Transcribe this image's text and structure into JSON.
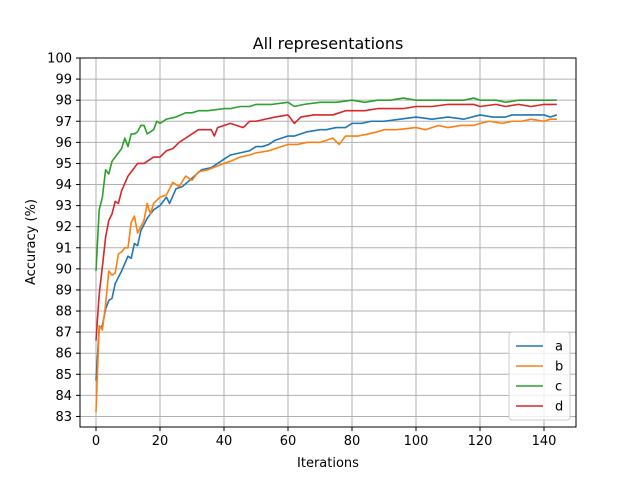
{
  "chart_data": {
    "type": "line",
    "title": "All representations",
    "xlabel": "Iterations",
    "ylabel": "Accuracy (%)",
    "xlim": [
      -5,
      150
    ],
    "ylim": [
      82.5,
      100
    ],
    "xticks": [
      0,
      20,
      40,
      60,
      80,
      100,
      120,
      140
    ],
    "yticks": [
      83,
      84,
      85,
      86,
      87,
      88,
      89,
      90,
      91,
      92,
      93,
      94,
      95,
      96,
      97,
      98,
      99,
      100
    ],
    "grid": true,
    "legend_position": "lower-right",
    "series": [
      {
        "name": "a",
        "color": "#1f77b4",
        "points": [
          [
            0,
            84.7
          ],
          [
            1,
            87.2
          ],
          [
            2,
            87.3
          ],
          [
            3,
            88.1
          ],
          [
            4,
            88.5
          ],
          [
            5,
            88.6
          ],
          [
            6,
            89.3
          ],
          [
            8,
            89.9
          ],
          [
            10,
            90.6
          ],
          [
            11,
            90.5
          ],
          [
            12,
            91.2
          ],
          [
            13,
            91.1
          ],
          [
            14,
            91.8
          ],
          [
            16,
            92.4
          ],
          [
            18,
            92.8
          ],
          [
            20,
            93.0
          ],
          [
            22,
            93.4
          ],
          [
            23,
            93.1
          ],
          [
            25,
            93.8
          ],
          [
            27,
            93.9
          ],
          [
            30,
            94.3
          ],
          [
            33,
            94.7
          ],
          [
            36,
            94.8
          ],
          [
            40,
            95.2
          ],
          [
            42,
            95.4
          ],
          [
            45,
            95.5
          ],
          [
            48,
            95.6
          ],
          [
            50,
            95.8
          ],
          [
            52,
            95.8
          ],
          [
            54,
            95.9
          ],
          [
            56,
            96.1
          ],
          [
            60,
            96.3
          ],
          [
            62,
            96.3
          ],
          [
            64,
            96.4
          ],
          [
            66,
            96.5
          ],
          [
            70,
            96.6
          ],
          [
            72,
            96.6
          ],
          [
            75,
            96.7
          ],
          [
            78,
            96.7
          ],
          [
            80,
            96.9
          ],
          [
            83,
            96.9
          ],
          [
            86,
            97.0
          ],
          [
            90,
            97.0
          ],
          [
            95,
            97.1
          ],
          [
            100,
            97.2
          ],
          [
            105,
            97.1
          ],
          [
            110,
            97.2
          ],
          [
            115,
            97.1
          ],
          [
            120,
            97.3
          ],
          [
            124,
            97.2
          ],
          [
            128,
            97.2
          ],
          [
            130,
            97.3
          ],
          [
            133,
            97.3
          ],
          [
            137,
            97.3
          ],
          [
            140,
            97.3
          ],
          [
            142,
            97.2
          ],
          [
            144,
            97.3
          ]
        ]
      },
      {
        "name": "b",
        "color": "#ff7f0e",
        "points": [
          [
            0,
            83.2
          ],
          [
            1,
            87.3
          ],
          [
            2,
            87.1
          ],
          [
            3,
            88.3
          ],
          [
            4,
            89.9
          ],
          [
            5,
            89.7
          ],
          [
            6,
            89.8
          ],
          [
            7,
            90.7
          ],
          [
            8,
            90.8
          ],
          [
            9,
            91.0
          ],
          [
            10,
            91.0
          ],
          [
            11,
            92.2
          ],
          [
            12,
            92.5
          ],
          [
            13,
            91.7
          ],
          [
            15,
            92.3
          ],
          [
            16,
            93.1
          ],
          [
            17,
            92.6
          ],
          [
            18,
            93.1
          ],
          [
            20,
            93.4
          ],
          [
            22,
            93.5
          ],
          [
            24,
            94.1
          ],
          [
            26,
            93.9
          ],
          [
            28,
            94.4
          ],
          [
            30,
            94.2
          ],
          [
            32,
            94.6
          ],
          [
            35,
            94.7
          ],
          [
            40,
            95.0
          ],
          [
            42,
            95.1
          ],
          [
            45,
            95.3
          ],
          [
            48,
            95.4
          ],
          [
            50,
            95.5
          ],
          [
            54,
            95.6
          ],
          [
            56,
            95.7
          ],
          [
            60,
            95.9
          ],
          [
            63,
            95.9
          ],
          [
            66,
            96.0
          ],
          [
            70,
            96.0
          ],
          [
            74,
            96.2
          ],
          [
            76,
            95.9
          ],
          [
            78,
            96.3
          ],
          [
            82,
            96.3
          ],
          [
            85,
            96.4
          ],
          [
            88,
            96.5
          ],
          [
            90,
            96.6
          ],
          [
            94,
            96.6
          ],
          [
            100,
            96.7
          ],
          [
            103,
            96.6
          ],
          [
            107,
            96.8
          ],
          [
            110,
            96.7
          ],
          [
            114,
            96.8
          ],
          [
            118,
            96.8
          ],
          [
            120,
            96.9
          ],
          [
            123,
            97.0
          ],
          [
            127,
            96.9
          ],
          [
            130,
            97.0
          ],
          [
            133,
            97.0
          ],
          [
            136,
            97.1
          ],
          [
            140,
            97.0
          ],
          [
            142,
            97.1
          ],
          [
            144,
            97.1
          ]
        ]
      },
      {
        "name": "c",
        "color": "#2ca02c",
        "points": [
          [
            0,
            89.9
          ],
          [
            1,
            92.8
          ],
          [
            2,
            93.4
          ],
          [
            3,
            94.7
          ],
          [
            4,
            94.5
          ],
          [
            5,
            95.1
          ],
          [
            6,
            95.3
          ],
          [
            7,
            95.5
          ],
          [
            8,
            95.7
          ],
          [
            9,
            96.2
          ],
          [
            10,
            95.8
          ],
          [
            11,
            96.4
          ],
          [
            12,
            96.4
          ],
          [
            13,
            96.5
          ],
          [
            14,
            96.8
          ],
          [
            15,
            96.8
          ],
          [
            16,
            96.4
          ],
          [
            18,
            96.6
          ],
          [
            19,
            97.0
          ],
          [
            20,
            96.9
          ],
          [
            22,
            97.1
          ],
          [
            25,
            97.2
          ],
          [
            28,
            97.4
          ],
          [
            30,
            97.4
          ],
          [
            32,
            97.5
          ],
          [
            35,
            97.5
          ],
          [
            40,
            97.6
          ],
          [
            42,
            97.6
          ],
          [
            45,
            97.7
          ],
          [
            48,
            97.7
          ],
          [
            50,
            97.8
          ],
          [
            55,
            97.8
          ],
          [
            60,
            97.9
          ],
          [
            62,
            97.7
          ],
          [
            65,
            97.8
          ],
          [
            70,
            97.9
          ],
          [
            75,
            97.9
          ],
          [
            80,
            98.0
          ],
          [
            84,
            97.9
          ],
          [
            88,
            98.0
          ],
          [
            92,
            98.0
          ],
          [
            96,
            98.1
          ],
          [
            100,
            98.0
          ],
          [
            105,
            98.0
          ],
          [
            110,
            98.0
          ],
          [
            115,
            98.0
          ],
          [
            118,
            98.1
          ],
          [
            120,
            98.0
          ],
          [
            125,
            98.0
          ],
          [
            128,
            97.9
          ],
          [
            132,
            98.0
          ],
          [
            135,
            98.0
          ],
          [
            140,
            98.0
          ],
          [
            144,
            98.0
          ]
        ]
      },
      {
        "name": "d",
        "color": "#d62728",
        "points": [
          [
            0,
            86.6
          ],
          [
            1,
            88.8
          ],
          [
            2,
            90.1
          ],
          [
            3,
            91.5
          ],
          [
            4,
            92.3
          ],
          [
            5,
            92.6
          ],
          [
            6,
            93.2
          ],
          [
            7,
            93.1
          ],
          [
            8,
            93.7
          ],
          [
            10,
            94.4
          ],
          [
            11,
            94.6
          ],
          [
            13,
            95.0
          ],
          [
            15,
            95.0
          ],
          [
            17,
            95.2
          ],
          [
            18,
            95.3
          ],
          [
            20,
            95.3
          ],
          [
            22,
            95.6
          ],
          [
            24,
            95.7
          ],
          [
            26,
            96.0
          ],
          [
            28,
            96.2
          ],
          [
            30,
            96.4
          ],
          [
            32,
            96.6
          ],
          [
            34,
            96.6
          ],
          [
            36,
            96.6
          ],
          [
            37,
            96.3
          ],
          [
            38,
            96.7
          ],
          [
            40,
            96.8
          ],
          [
            42,
            96.9
          ],
          [
            44,
            96.8
          ],
          [
            46,
            96.7
          ],
          [
            48,
            97.0
          ],
          [
            50,
            97.0
          ],
          [
            53,
            97.1
          ],
          [
            56,
            97.2
          ],
          [
            60,
            97.3
          ],
          [
            62,
            96.9
          ],
          [
            64,
            97.2
          ],
          [
            68,
            97.3
          ],
          [
            70,
            97.3
          ],
          [
            74,
            97.3
          ],
          [
            78,
            97.5
          ],
          [
            80,
            97.5
          ],
          [
            84,
            97.5
          ],
          [
            88,
            97.6
          ],
          [
            92,
            97.6
          ],
          [
            96,
            97.6
          ],
          [
            100,
            97.7
          ],
          [
            105,
            97.7
          ],
          [
            110,
            97.8
          ],
          [
            115,
            97.8
          ],
          [
            118,
            97.8
          ],
          [
            120,
            97.7
          ],
          [
            125,
            97.8
          ],
          [
            128,
            97.7
          ],
          [
            132,
            97.8
          ],
          [
            136,
            97.7
          ],
          [
            140,
            97.8
          ],
          [
            144,
            97.8
          ]
        ]
      }
    ]
  }
}
